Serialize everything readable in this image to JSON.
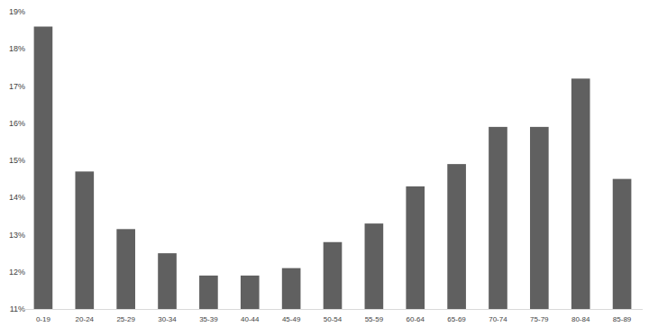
{
  "chart_data": {
    "type": "bar",
    "categories": [
      "0-19",
      "20-24",
      "25-29",
      "30-34",
      "35-39",
      "40-44",
      "45-49",
      "50-54",
      "55-59",
      "60-64",
      "65-69",
      "70-74",
      "75-79",
      "80-84",
      "85-89"
    ],
    "values": [
      18.6,
      14.7,
      13.15,
      12.5,
      11.9,
      11.9,
      12.1,
      12.8,
      13.3,
      14.3,
      14.9,
      15.9,
      15.9,
      17.2,
      14.5
    ],
    "color": "#606060",
    "ylim": [
      11,
      19
    ],
    "yticks": [
      {
        "value": 11,
        "label": "11%"
      },
      {
        "value": 12,
        "label": "12%"
      },
      {
        "value": 13,
        "label": "13%"
      },
      {
        "value": 14,
        "label": "14%"
      },
      {
        "value": 15,
        "label": "15%"
      },
      {
        "value": 16,
        "label": "16%"
      },
      {
        "value": 17,
        "label": "17%"
      },
      {
        "value": 18,
        "label": "18%"
      },
      {
        "value": 19,
        "label": "19%"
      }
    ],
    "grid": false
  }
}
